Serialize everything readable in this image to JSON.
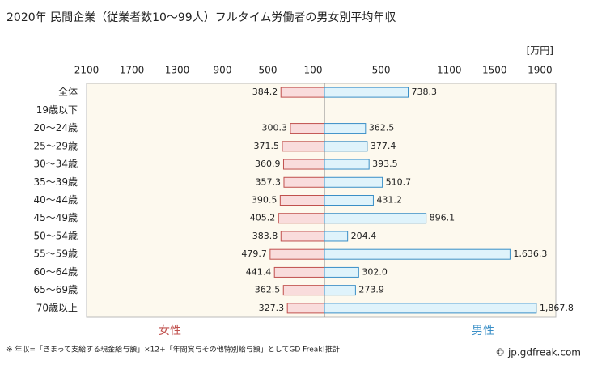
{
  "chart_data": {
    "type": "butterfly",
    "title": "2020年 民間企業（従業者数10～99人）フルタイム労働者の男女別平均年収",
    "unit_label": "[万円]",
    "categories": [
      "全体",
      "19歳以下",
      "20～24歳",
      "25～29歳",
      "30～34歳",
      "35～39歳",
      "40～44歳",
      "45～49歳",
      "50～54歳",
      "55～59歳",
      "60～64歳",
      "65～69歳",
      "70歳以上"
    ],
    "series": [
      {
        "name": "女性",
        "side": "left",
        "color": "#c0504d",
        "fill": "#f9dcdc",
        "xlim": [
          0,
          2100
        ],
        "xticks": [
          2100,
          1700,
          1300,
          900,
          500,
          100
        ],
        "values": [
          384.2,
          null,
          300.3,
          371.5,
          360.9,
          357.3,
          390.5,
          405.2,
          383.8,
          479.7,
          441.4,
          362.5,
          327.3
        ]
      },
      {
        "name": "男性",
        "side": "right",
        "color": "#3a8fc7",
        "fill": "#dff3fb",
        "xlim": [
          0,
          2040
        ],
        "xticks": [
          500,
          1100,
          1500,
          1900
        ],
        "values": [
          738.3,
          null,
          362.5,
          377.4,
          393.5,
          510.7,
          431.2,
          896.1,
          204.4,
          1636.3,
          302.0,
          273.9,
          1867.8
        ],
        "value_labels": [
          "738.3",
          null,
          "362.5",
          "377.4",
          "393.5",
          "510.7",
          "431.2",
          "896.1",
          "204.4",
          "1,636.3",
          "302.0",
          "273.9",
          "1,867.8"
        ]
      }
    ],
    "footnote": "※ 年収=「きまって支給する現金給与額」×12+「年間賞与その他特別給与額」としてGD Freak!推計",
    "credit": "© jp.gdfreak.com"
  }
}
